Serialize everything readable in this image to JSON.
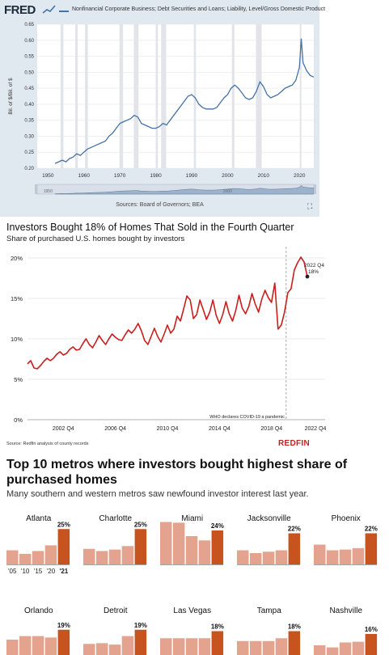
{
  "fred": {
    "logo": "FRED",
    "series_title": "Nonfinancial Corporate Business; Debt Securities and Loans; Liability, Level/Gross Domestic Product",
    "source": "Sources: Board of Governors; BEA",
    "expand_icon": "expand-icon",
    "navigator_labels": [
      "1950",
      "2000"
    ],
    "line_color": "#4572a7",
    "recession_color": "#ffffff"
  },
  "redfin": {
    "title": "Investors Bought 18% of Homes That Sold in the Fourth Quarter",
    "subtitle": "Share of purchased U.S. homes bought by investors",
    "source": "Source: Redfin analysis of county records",
    "logo": "REDFIN",
    "line_color": "#c8201e"
  },
  "metros": {
    "title": "Top 10 metros where investors bought highest share of purchased homes",
    "subtitle": "Many southern and western metros saw newfound investor interest last year.",
    "past_color": "#e4a38f",
    "latest_color": "#c7541f"
  },
  "chart_data": [
    {
      "type": "line",
      "title": "Nonfinancial Corporate Business; Debt Securities and Loans; Liability, Level/Gross Domestic Product",
      "ylabel": "Bil. of $/Bil. of $",
      "xlabel": "",
      "ylim": [
        0.2,
        0.65
      ],
      "xlim": [
        1947,
        2024
      ],
      "x_ticks": [
        1950,
        1960,
        1970,
        1980,
        1990,
        2000,
        2010,
        2020
      ],
      "y_ticks": [
        0.2,
        0.25,
        0.3,
        0.35,
        0.4,
        0.45,
        0.5,
        0.55,
        0.6,
        0.65
      ],
      "y_tick_labels": [
        "0.20",
        "0.25",
        "0.30",
        "0.35",
        "0.40",
        "0.45",
        "0.50",
        "0.55",
        "0.60",
        "0.65"
      ],
      "grid": true,
      "recessions": [
        [
          1953.5,
          1954.3
        ],
        [
          1957.6,
          1958.3
        ],
        [
          1960.3,
          1961.1
        ],
        [
          1969.9,
          1970.9
        ],
        [
          1973.9,
          1975.2
        ],
        [
          1980.0,
          1980.6
        ],
        [
          1981.5,
          1982.9
        ],
        [
          1990.6,
          1991.2
        ],
        [
          2001.2,
          2001.9
        ],
        [
          2007.9,
          2009.5
        ],
        [
          2020.1,
          2020.4
        ]
      ],
      "series": [
        {
          "x": [
            1952,
            1953,
            1954,
            1955,
            1956,
            1957,
            1958,
            1959,
            1960,
            1961,
            1962,
            1963,
            1964,
            1965,
            1966,
            1967,
            1968,
            1969,
            1970,
            1971,
            1972,
            1973,
            1974,
            1975,
            1976,
            1977,
            1978,
            1979,
            1980,
            1981,
            1982,
            1983,
            1984,
            1985,
            1986,
            1987,
            1988,
            1989,
            1990,
            1991,
            1992,
            1993,
            1994,
            1995,
            1996,
            1997,
            1998,
            1999,
            2000,
            2001,
            2002,
            2003,
            2004,
            2005,
            2006,
            2007,
            2008,
            2009,
            2010,
            2011,
            2012,
            2013,
            2014,
            2015,
            2016,
            2017,
            2018,
            2019,
            2020,
            2020.5,
            2021,
            2022,
            2023,
            2024
          ],
          "values": [
            0.215,
            0.22,
            0.225,
            0.22,
            0.23,
            0.235,
            0.245,
            0.24,
            0.25,
            0.26,
            0.265,
            0.27,
            0.275,
            0.28,
            0.285,
            0.3,
            0.31,
            0.325,
            0.34,
            0.345,
            0.35,
            0.355,
            0.365,
            0.36,
            0.34,
            0.335,
            0.33,
            0.325,
            0.325,
            0.33,
            0.34,
            0.335,
            0.35,
            0.365,
            0.38,
            0.395,
            0.41,
            0.425,
            0.43,
            0.42,
            0.4,
            0.39,
            0.385,
            0.385,
            0.385,
            0.39,
            0.405,
            0.42,
            0.43,
            0.45,
            0.46,
            0.45,
            0.435,
            0.42,
            0.415,
            0.42,
            0.44,
            0.47,
            0.455,
            0.43,
            0.42,
            0.425,
            0.43,
            0.44,
            0.45,
            0.455,
            0.46,
            0.475,
            0.515,
            0.605,
            0.53,
            0.505,
            0.49,
            0.485
          ]
        }
      ]
    },
    {
      "type": "line",
      "title": "Investors Bought 18% of Homes That Sold in the Fourth Quarter",
      "subtitle": "Share of purchased U.S. homes bought by investors",
      "ylim": [
        0,
        20
      ],
      "y_ticks": [
        0,
        5,
        10,
        15,
        20
      ],
      "y_tick_labels": [
        "0%",
        "5%",
        "10%",
        "15%",
        "20%"
      ],
      "x_tick_labels": [
        "2002 Q4",
        "2006 Q4",
        "2010 Q4",
        "2014 Q4",
        "2018 Q4",
        "2022 Q4"
      ],
      "grid": true,
      "annotations": [
        {
          "text": "WHO declares COVID-19 a pandemic",
          "at": "2020 Q1"
        },
        {
          "text": "2022 Q4",
          "at": "2022 Q4"
        },
        {
          "text": "18%",
          "at": "2022 Q4"
        }
      ],
      "series": [
        {
          "x_start": "2000 Q1",
          "frequency": "quarterly",
          "values": [
            6.9,
            7.3,
            6.4,
            6.3,
            6.7,
            7.2,
            7.6,
            7.3,
            7.6,
            8.1,
            8.4,
            8.0,
            8.2,
            8.7,
            9.0,
            8.6,
            8.7,
            9.4,
            10.0,
            9.3,
            8.9,
            9.6,
            10.4,
            9.8,
            9.3,
            10.0,
            10.6,
            10.2,
            9.9,
            9.8,
            10.5,
            11.1,
            10.7,
            11.2,
            11.9,
            11.0,
            9.8,
            9.3,
            10.3,
            11.3,
            10.3,
            9.6,
            10.6,
            11.7,
            10.7,
            11.2,
            12.8,
            12.2,
            13.7,
            15.3,
            14.8,
            12.5,
            13.0,
            14.8,
            13.6,
            12.4,
            13.3,
            14.8,
            12.9,
            11.9,
            13.0,
            14.6,
            13.1,
            12.2,
            13.5,
            15.4,
            13.8,
            13.1,
            14.0,
            15.6,
            14.3,
            13.3,
            14.9,
            16.0,
            15.1,
            14.5,
            16.9,
            11.2,
            11.7,
            13.3,
            15.7,
            16.2,
            18.5,
            19.4,
            20.1,
            19.5,
            17.7
          ]
        }
      ]
    },
    {
      "type": "bar",
      "title": "Top 10 metros where investors bought highest share of purchased homes",
      "subtitle": "Many southern and western metros saw newfound investor interest last year.",
      "categories": [
        "'05",
        "'10",
        "'15",
        "'20",
        "'21"
      ],
      "category_labels_shown_for": [
        "Atlanta",
        "Orlando"
      ],
      "series": [
        {
          "name": "Atlanta",
          "values": [
            10,
            7.5,
            9.5,
            13.5,
            25
          ],
          "label": "25%"
        },
        {
          "name": "Charlotte",
          "values": [
            11,
            9.5,
            10.5,
            13,
            25
          ],
          "label": "25%"
        },
        {
          "name": "Miami",
          "values": [
            30,
            29.5,
            20,
            17,
            24
          ],
          "label": "24%"
        },
        {
          "name": "Jacksonville",
          "values": [
            10,
            8,
            9,
            10,
            22
          ],
          "label": "22%"
        },
        {
          "name": "Phoenix",
          "values": [
            14,
            10,
            10.5,
            11.5,
            22
          ],
          "label": "22%"
        },
        {
          "name": "Orlando",
          "values": [
            12,
            14.5,
            14.5,
            13.5,
            19
          ],
          "label": "19%"
        },
        {
          "name": "Detroit",
          "values": [
            9,
            9.5,
            8.5,
            14.5,
            19
          ],
          "label": "19%"
        },
        {
          "name": "Las Vegas",
          "values": [
            13,
            13,
            13,
            13,
            18
          ],
          "label": "18%"
        },
        {
          "name": "Tampa",
          "values": [
            11,
            11,
            11,
            13,
            18
          ],
          "label": "18%"
        },
        {
          "name": "Nashville",
          "values": [
            8,
            6.5,
            10,
            10.5,
            16
          ],
          "label": "16%"
        }
      ]
    }
  ]
}
